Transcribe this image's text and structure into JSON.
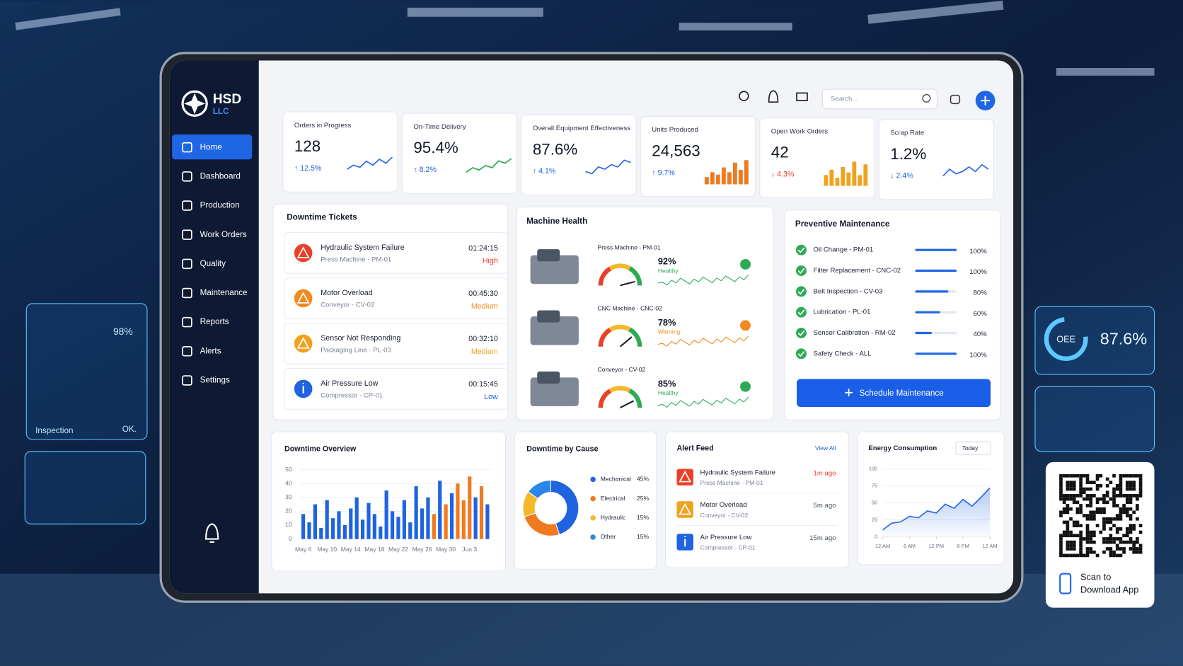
{
  "sidebar": {
    "brand": "HSD",
    "brand_sub": "LLC",
    "nav": [
      "Home",
      "Dashboard",
      "Production",
      "Work Orders",
      "Quality",
      "Maintenance",
      "Reports",
      "Alerts",
      "Settings"
    ],
    "active": 0
  },
  "header": {
    "search_placeholder": "Search..."
  },
  "kpis": [
    {
      "label": "Orders in Progress",
      "value": "128",
      "change": "↑ 12.5%",
      "trend": "up",
      "spark_kind": "line",
      "color": "#2a6ae8",
      "spark": [
        3,
        5,
        4,
        7,
        5,
        8,
        6,
        9
      ]
    },
    {
      "label": "On-Time Delivery",
      "value": "95.4%",
      "change": "↑ 8.2%",
      "trend": "up",
      "spark_kind": "line",
      "color": "#2eaa55",
      "spark": [
        2,
        4,
        3,
        5,
        4,
        7,
        6,
        8
      ]
    },
    {
      "label": "Overall Equipment Effectiveness",
      "value": "87.6%",
      "change": "↑ 4.1%",
      "trend": "up",
      "spark_kind": "line",
      "color": "#2a6ae8",
      "spark": [
        3,
        2,
        5,
        4,
        6,
        5,
        8,
        7
      ]
    },
    {
      "label": "Units Produced",
      "value": "24,563",
      "change": "↑ 9.7%",
      "trend": "up",
      "spark_kind": "bar",
      "color": "#f07a1f",
      "spark": [
        3,
        5,
        4,
        7,
        5,
        9,
        6,
        10
      ]
    },
    {
      "label": "Open Work Orders",
      "value": "42",
      "change": "↓ 4.3%",
      "trend": "down",
      "spark_kind": "bar",
      "color": "#f0a21f",
      "spark": [
        4,
        6,
        3,
        7,
        5,
        9,
        4,
        8
      ]
    },
    {
      "label": "Scrap Rate",
      "value": "1.2%",
      "change": "↓ 2.4%",
      "trend": "down_good",
      "spark_kind": "line",
      "color": "#2a6ae8",
      "spark": [
        3,
        6,
        4,
        5,
        7,
        5,
        8,
        6
      ]
    }
  ],
  "downtime_tickets": {
    "title": "Downtime Tickets",
    "items": [
      {
        "title": "Hydraulic System Failure",
        "sub": "Press Machine - PM-01",
        "time": "01:24:15",
        "priority": "High",
        "color": "#e8412a",
        "icon": "triangle"
      },
      {
        "title": "Motor Overload",
        "sub": "Conveyor - CV-02",
        "time": "00:45:30",
        "priority": "Medium",
        "color": "#f08a1f",
        "icon": "triangle"
      },
      {
        "title": "Sensor Not Responding",
        "sub": "Packaging Line - PL-03",
        "time": "00:32:10",
        "priority": "Medium",
        "color": "#f0a21f",
        "icon": "triangle"
      },
      {
        "title": "Air Pressure Low",
        "sub": "Compressor - CP-01",
        "time": "00:15:45",
        "priority": "Low",
        "color": "#1f63e0",
        "icon": "info"
      }
    ]
  },
  "machine_health": {
    "title": "Machine Health",
    "items": [
      {
        "name": "Press Machine - PM-01",
        "value": 92,
        "value_label": "92%",
        "status": "Healthy",
        "color": "#2eaa55"
      },
      {
        "name": "CNC Machine - CNC-02",
        "value": 78,
        "value_label": "78%",
        "status": "Warning",
        "color": "#f08a1f"
      },
      {
        "name": "Conveyor - CV-02",
        "value": 85,
        "value_label": "85%",
        "status": "Healthy",
        "color": "#2eaa55"
      }
    ]
  },
  "preventive_maintenance": {
    "title": "Preventive Maintenance",
    "items": [
      {
        "task": "Oil Change - PM-01",
        "value": 100,
        "value_label": "100%"
      },
      {
        "task": "Filter Replacement - CNC-02",
        "value": 100,
        "value_label": "100%"
      },
      {
        "task": "Belt Inspection - CV-03",
        "value": 80,
        "value_label": "80%"
      },
      {
        "task": "Lubrication - PL-01",
        "value": 60,
        "value_label": "60%"
      },
      {
        "task": "Sensor Calibration - RM-02",
        "value": 40,
        "value_label": "40%"
      },
      {
        "task": "Safety Check - ALL",
        "value": 100,
        "value_label": "100%"
      }
    ],
    "button": "Schedule Maintenance"
  },
  "downtime_overview": {
    "title": "Downtime Overview",
    "type": "bar",
    "ylim": [
      0,
      50
    ],
    "yticks": [
      0,
      10,
      20,
      30,
      40,
      50
    ],
    "categories": [
      "May 6",
      null,
      null,
      null,
      "May 10",
      null,
      null,
      null,
      "May 14",
      null,
      null,
      null,
      "May 18",
      null,
      null,
      null,
      "May 22",
      null,
      null,
      null,
      "May 26",
      null,
      null,
      null,
      "May 30",
      null,
      null,
      null,
      "Jun 3",
      null,
      null,
      null
    ],
    "values": [
      18,
      12,
      25,
      8,
      28,
      15,
      20,
      10,
      22,
      30,
      14,
      26,
      18,
      9,
      35,
      20,
      16,
      28,
      12,
      38,
      22,
      30,
      18,
      42,
      25,
      33,
      40,
      28,
      45,
      30,
      38,
      25
    ],
    "colors": [
      "#1f63e0",
      "#1f63e0",
      "#1f63e0",
      "#1f63e0",
      "#1f63e0",
      "#1f63e0",
      "#1f63e0",
      "#1f63e0",
      "#1f63e0",
      "#1f63e0",
      "#1f63e0",
      "#1f63e0",
      "#1f63e0",
      "#1f63e0",
      "#1f63e0",
      "#1f63e0",
      "#1f63e0",
      "#1f63e0",
      "#1f63e0",
      "#1f63e0",
      "#1f63e0",
      "#1f63e0",
      "#f07a1f",
      "#1f63e0",
      "#f07a1f",
      "#1f63e0",
      "#f07a1f",
      "#f07a1f",
      "#f07a1f",
      "#1f63e0",
      "#f07a1f",
      "#1f63e0"
    ]
  },
  "downtime_by_cause": {
    "title": "Downtime by Cause",
    "type": "pie",
    "categories": [
      "Mechanical",
      "Electrical",
      "Hydraulic",
      "Other"
    ],
    "values": [
      45,
      25,
      15,
      15
    ],
    "value_labels": [
      "45%",
      "25%",
      "15%",
      "15%"
    ],
    "colors": [
      "#1f63e0",
      "#f07a1f",
      "#f5b82a",
      "#2a86e8"
    ]
  },
  "alert_feed": {
    "title": "Alert Feed",
    "link": "View All",
    "items": [
      {
        "title": "Hydraulic System Failure",
        "sub": "Press Machine - PM-01",
        "time": "1m ago",
        "color": "#e8412a",
        "icon": "triangle"
      },
      {
        "title": "Motor Overload",
        "sub": "Conveyor - CV-02",
        "time": "5m ago",
        "color": "#f0a21f",
        "icon": "triangle"
      },
      {
        "title": "Air Pressure Low",
        "sub": "Compressor - CP-01",
        "time": "15m ago",
        "color": "#1f63e0",
        "icon": "info"
      }
    ]
  },
  "energy": {
    "title": "Energy Consumption",
    "type": "line",
    "dropdown": "Today",
    "color": "#2a6ae8",
    "x": [
      0,
      2,
      4,
      6,
      8,
      10,
      12,
      14,
      16,
      18,
      20,
      22,
      24
    ],
    "values": [
      10,
      20,
      22,
      30,
      28,
      38,
      35,
      48,
      42,
      55,
      45,
      58,
      72
    ],
    "xlim": [
      0,
      24
    ],
    "xticks": [
      {
        "value": 0,
        "label": "12 AM"
      },
      {
        "value": 6,
        "label": "6 AM"
      },
      {
        "value": 12,
        "label": "12 PM"
      },
      {
        "value": 18,
        "label": "6 PM"
      },
      {
        "value": 24,
        "label": "12 AM"
      }
    ],
    "ylim": [
      0,
      100
    ],
    "yticks": [
      0,
      25,
      50,
      75,
      100
    ]
  },
  "hologram": {
    "left_value": "98%",
    "left_label": "Inspection",
    "left_status": "OK.",
    "right_label": "OEE",
    "right_value": "87.6%"
  },
  "qr": {
    "line1": "Scan to",
    "line2": "Download App"
  }
}
